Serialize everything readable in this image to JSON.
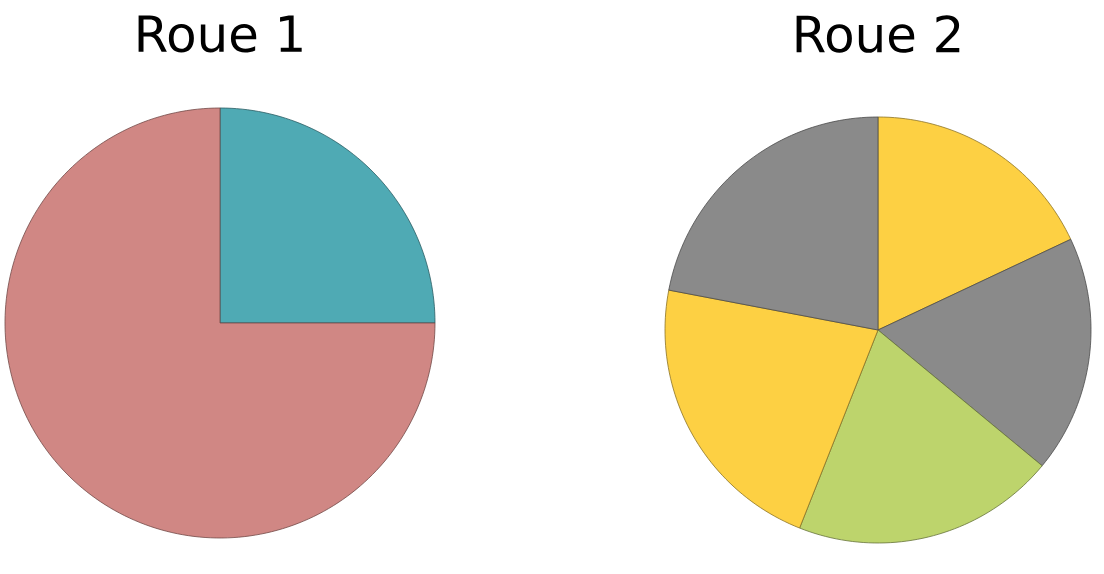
{
  "chart_data": [
    {
      "type": "pie",
      "title": "Roue 1",
      "categories": [
        null,
        null
      ],
      "values": [
        25,
        75
      ],
      "colors": [
        "#4faab4",
        "#d08784"
      ]
    },
    {
      "type": "pie",
      "title": "Roue 2",
      "categories": [
        null,
        null,
        null,
        null,
        null
      ],
      "values": [
        18,
        18,
        20,
        22,
        22
      ],
      "colors": [
        "#fdd043",
        "#8a8a8a",
        "#bdd46c",
        "#fdd043",
        "#8a8a8a"
      ]
    }
  ]
}
